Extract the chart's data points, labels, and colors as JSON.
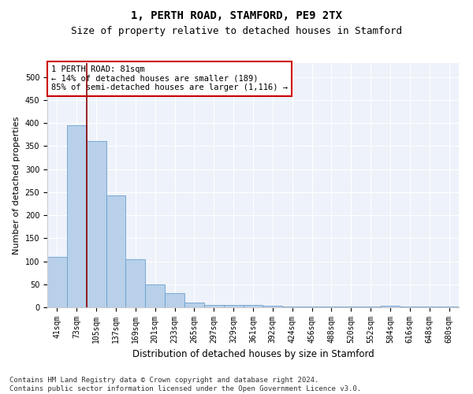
{
  "title1": "1, PERTH ROAD, STAMFORD, PE9 2TX",
  "title2": "Size of property relative to detached houses in Stamford",
  "xlabel": "Distribution of detached houses by size in Stamford",
  "ylabel": "Number of detached properties",
  "categories": [
    "41sqm",
    "73sqm",
    "105sqm",
    "137sqm",
    "169sqm",
    "201sqm",
    "233sqm",
    "265sqm",
    "297sqm",
    "329sqm",
    "361sqm",
    "392sqm",
    "424sqm",
    "456sqm",
    "488sqm",
    "520sqm",
    "552sqm",
    "584sqm",
    "616sqm",
    "648sqm",
    "680sqm"
  ],
  "values": [
    110,
    395,
    360,
    242,
    105,
    50,
    30,
    10,
    5,
    5,
    5,
    3,
    2,
    1,
    1,
    1,
    1,
    4,
    1,
    1,
    2
  ],
  "bar_color": "#b8d0ea",
  "bar_edge_color": "#6aa0cc",
  "annotation_box_text": "1 PERTH ROAD: 81sqm\n← 14% of detached houses are smaller (189)\n85% of semi-detached houses are larger (1,116) →",
  "vline_color": "#8b0000",
  "vline_x": 1.5,
  "ylim": [
    0,
    530
  ],
  "yticks": [
    0,
    50,
    100,
    150,
    200,
    250,
    300,
    350,
    400,
    450,
    500
  ],
  "bg_color": "#eef2fa",
  "grid_color": "#ffffff",
  "footer_line1": "Contains HM Land Registry data © Crown copyright and database right 2024.",
  "footer_line2": "Contains public sector information licensed under the Open Government Licence v3.0.",
  "title1_fontsize": 10,
  "title2_fontsize": 9,
  "xlabel_fontsize": 8.5,
  "ylabel_fontsize": 8,
  "tick_fontsize": 7,
  "annotation_fontsize": 7.5,
  "footer_fontsize": 6.5
}
